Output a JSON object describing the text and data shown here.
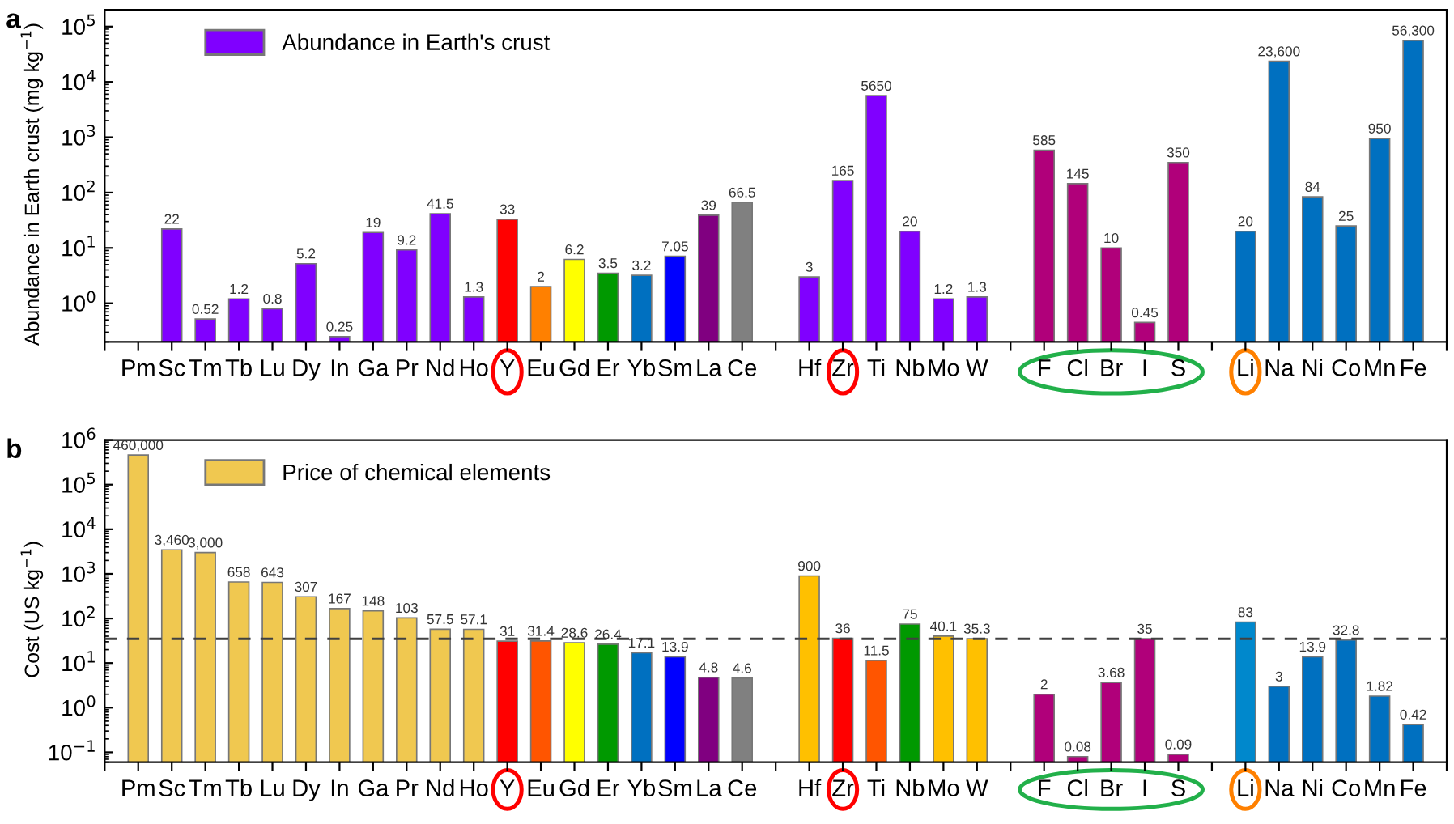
{
  "chart_data": [
    {
      "type": "bar",
      "annotations": [
        "a"
      ],
      "ylabel": "Abundance in Earth crust (mg kg$^{−1}$)",
      "log": true,
      "ylim": [
        0.2,
        200000
      ],
      "yticks": [
        {
          "value": 1,
          "label": "10$^{0}$"
        },
        {
          "value": 10,
          "label": "10$^{1}$"
        },
        {
          "value": 100,
          "label": "10$^{2}$"
        },
        {
          "value": 1000,
          "label": "10$^{3}$"
        },
        {
          "value": 10000,
          "label": "10$^{4}$"
        },
        {
          "value": 100000,
          "label": "10$^{5}$"
        }
      ],
      "categories": [
        "Pm",
        "Sc",
        "Tm",
        "Tb",
        "Lu",
        "Dy",
        "In",
        "Ga",
        "Pr",
        "Nd",
        "Ho",
        "Y",
        "Eu",
        "Gd",
        "Er",
        "Yb",
        "Sm",
        "La",
        "Ce",
        null,
        "Hf",
        "Zr",
        "Ti",
        "Nb",
        "Mo",
        "W",
        null,
        "F",
        "Cl",
        "Br",
        "I",
        "S",
        null,
        "Li",
        "Na",
        "Ni",
        "Co",
        "Mn",
        "Fe"
      ],
      "legend": "top left",
      "grid": false,
      "series": [
        {
          "name": "Abundance in Earth's crust",
          "color": "#8000ff",
          "values": [
            null,
            22,
            0.52,
            1.2,
            0.8,
            5.2,
            0.25,
            19,
            9.2,
            41.5,
            1.3,
            33,
            2,
            6.2,
            3.5,
            3.2,
            7.05,
            39,
            66.5,
            null,
            3,
            165,
            5650,
            20,
            1.2,
            1.3,
            null,
            585,
            145,
            10,
            0.45,
            350,
            null,
            20,
            23600,
            84,
            25,
            950,
            56300
          ],
          "value_labels": [
            null,
            "22",
            "0.52",
            "1.2",
            "0.8",
            "5.2",
            "0.25",
            "19",
            "9.2",
            "41.5",
            "1.3",
            "33",
            "2",
            "6.2",
            "3.5",
            "3.2",
            "7.05",
            "39",
            "66.5",
            null,
            "3",
            "165",
            "5650",
            "20",
            "1.2",
            "1.3",
            null,
            "585",
            "145",
            "10",
            "0.45",
            "350",
            null,
            "20",
            "23,600",
            "84",
            "25",
            "950",
            "56,300"
          ],
          "colors": [
            "#8000ff",
            "#8000ff",
            "#8000ff",
            "#8000ff",
            "#8000ff",
            "#8000ff",
            "#8000ff",
            "#8000ff",
            "#8000ff",
            "#8000ff",
            "#8000ff",
            "#ff0000",
            "#ff8000",
            "#ffff00",
            "#009900",
            "#0070c0",
            "#0000ff",
            "#800080",
            "#808080",
            null,
            "#8000ff",
            "#8000ff",
            "#8000ff",
            "#8000ff",
            "#8000ff",
            "#8000ff",
            null,
            "#b0007a",
            "#b0007a",
            "#b0007a",
            "#b0007a",
            "#b0007a",
            null,
            "#0070c0",
            "#0070c0",
            "#0070c0",
            "#0070c0",
            "#0070c0",
            "#0070c0"
          ]
        }
      ]
    },
    {
      "type": "bar",
      "annotations": [
        "b"
      ],
      "ylabel": "Cost (US kg$^{−1}$)",
      "log": true,
      "ylim": [
        0.06,
        1000000
      ],
      "yticks": [
        {
          "value": 0.1,
          "label": "10$^{−1}$"
        },
        {
          "value": 1,
          "label": "10$^{0}$"
        },
        {
          "value": 10,
          "label": "10$^{1}$"
        },
        {
          "value": 100,
          "label": "10$^{2}$"
        },
        {
          "value": 1000,
          "label": "10$^{3}$"
        },
        {
          "value": 10000,
          "label": "10$^{4}$"
        },
        {
          "value": 100000,
          "label": "10$^{5}$"
        },
        {
          "value": 1000000,
          "label": "10$^{6}$"
        }
      ],
      "categories": [
        "Pm",
        "Sc",
        "Tm",
        "Tb",
        "Lu",
        "Dy",
        "In",
        "Ga",
        "Pr",
        "Nd",
        "Ho",
        "Y",
        "Eu",
        "Gd",
        "Er",
        "Yb",
        "Sm",
        "La",
        "Ce",
        null,
        "Hf",
        "Zr",
        "Ti",
        "Nb",
        "Mo",
        "W",
        null,
        "F",
        "Cl",
        "Br",
        "I",
        "S",
        null,
        "Li",
        "Na",
        "Ni",
        "Co",
        "Mn",
        "Fe"
      ],
      "legend": "top left",
      "grid": false,
      "ref_lines": [
        {
          "axis": "y",
          "value": 35,
          "color": "#404040",
          "line_style": "dashed"
        }
      ],
      "series": [
        {
          "name": "Price of chemical elements",
          "color": "#f0c850",
          "values": [
            460000,
            3460,
            3000,
            658,
            643,
            307,
            167,
            148,
            103,
            57.5,
            57.1,
            31,
            31.4,
            28.6,
            26.4,
            17.1,
            13.9,
            4.8,
            4.6,
            null,
            900,
            36,
            11.5,
            75,
            40.1,
            35.3,
            null,
            2,
            0.08,
            3.68,
            35,
            0.09,
            null,
            83,
            3,
            13.9,
            32.8,
            1.82,
            0.42
          ],
          "value_labels": [
            "460,000",
            "3,460",
            "3,000",
            "658",
            "643",
            "307",
            "167",
            "148",
            "103",
            "57.5",
            "57.1",
            "31",
            "31.4",
            "28.6",
            "26.4",
            "17.1",
            "13.9",
            "4.8",
            "4.6",
            null,
            "900",
            "36",
            "11.5",
            "75",
            "40.1",
            "35.3",
            null,
            "2",
            "0.08",
            "3.68",
            "35",
            "0.09",
            null,
            "83",
            "3",
            "13.9",
            "32.8",
            "1.82",
            "0.42"
          ],
          "colors": [
            "#f0c850",
            "#f0c850",
            "#f0c850",
            "#f0c850",
            "#f0c850",
            "#f0c850",
            "#f0c850",
            "#f0c850",
            "#f0c850",
            "#f0c850",
            "#f0c850",
            "#ff0000",
            "#ff5500",
            "#ffff00",
            "#009900",
            "#0070c0",
            "#0000ff",
            "#800080",
            "#808080",
            null,
            "#ffc000",
            "#ff0000",
            "#ff5500",
            "#009900",
            "#ffc000",
            "#ffc000",
            null,
            "#b0007a",
            "#b0007a",
            "#b0007a",
            "#b0007a",
            "#b0007a",
            null,
            "#0088cc",
            "#0070c0",
            "#0070c0",
            "#0070c0",
            "#0070c0",
            "#0070c0"
          ]
        }
      ]
    }
  ]
}
